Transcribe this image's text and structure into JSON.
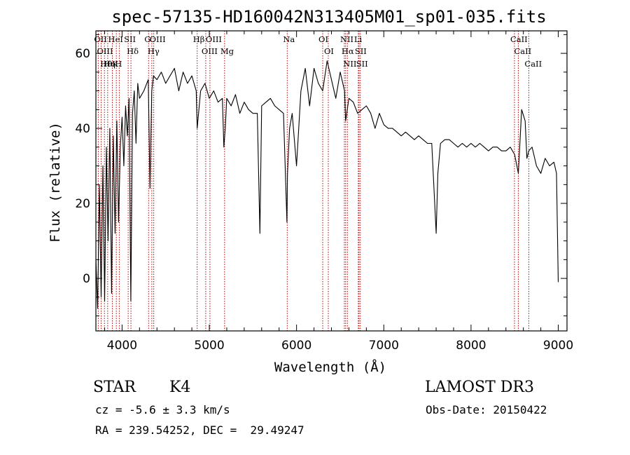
{
  "title": "spec-57135-HD160042N313405M01_sp01-035.fits",
  "info": {
    "object_class": "STAR",
    "subclass": "K4",
    "survey": "LAMOST DR3",
    "cz": "cz = -5.6 ± 3.3 km/s",
    "obs_date": "Obs-Date: 20150422",
    "coords": "RA = 239.54252, DEC =  29.49247"
  },
  "chart_data": {
    "type": "line",
    "title": "spec-57135-HD160042N313405M01_sp01-035.fits",
    "xlabel": "Wavelength (Å)",
    "ylabel": "Flux (relative)",
    "xlim": [
      3700,
      9100
    ],
    "ylim": [
      -14,
      66
    ],
    "x_ticks": [
      4000,
      5000,
      6000,
      7000,
      8000,
      9000
    ],
    "y_ticks": [
      0,
      20,
      40,
      60
    ],
    "grid": false,
    "line_color": "#000000",
    "marker_color": "#c00000",
    "series": [
      {
        "x": [
          3700,
          3720,
          3740,
          3760,
          3780,
          3800,
          3820,
          3840,
          3860,
          3880,
          3900,
          3920,
          3940,
          3960,
          3980,
          4000,
          4020,
          4040,
          4060,
          4080,
          4100,
          4120,
          4140,
          4160,
          4180,
          4200,
          4250,
          4300,
          4320,
          4340,
          4360,
          4400,
          4450,
          4500,
          4550,
          4600,
          4650,
          4700,
          4750,
          4800,
          4850,
          4861,
          4900,
          4950,
          5000,
          5050,
          5100,
          5150,
          5167,
          5183,
          5200,
          5250,
          5300,
          5350,
          5400,
          5450,
          5500,
          5550,
          5580,
          5600,
          5650,
          5700,
          5750,
          5800,
          5850,
          5890,
          5896,
          5920,
          5950,
          6000,
          6050,
          6100,
          6150,
          6200,
          6250,
          6300,
          6350,
          6400,
          6450,
          6500,
          6550,
          6563,
          6600,
          6650,
          6700,
          6750,
          6800,
          6850,
          6900,
          6950,
          7000,
          7050,
          7100,
          7150,
          7200,
          7250,
          7300,
          7350,
          7400,
          7450,
          7500,
          7550,
          7600,
          7620,
          7650,
          7700,
          7750,
          7800,
          7850,
          7900,
          7950,
          8000,
          8050,
          8100,
          8150,
          8200,
          8250,
          8300,
          8350,
          8400,
          8450,
          8500,
          8542,
          8580,
          8620,
          8640,
          8662,
          8700,
          8750,
          8800,
          8850,
          8900,
          8950,
          8980,
          9000
        ],
        "y": [
          5,
          -8,
          25,
          -5,
          30,
          -6,
          35,
          10,
          40,
          -4,
          38,
          12,
          42,
          15,
          35,
          43,
          30,
          46,
          38,
          48,
          -6,
          44,
          50,
          36,
          52,
          48,
          50,
          53,
          24,
          50,
          54,
          53,
          55,
          52,
          54,
          56,
          50,
          55,
          52,
          54,
          50,
          40,
          50,
          52,
          48,
          50,
          47,
          48,
          35,
          40,
          48,
          46,
          49,
          44,
          47,
          45,
          44,
          44,
          12,
          46,
          47,
          48,
          46,
          45,
          44,
          15,
          28,
          40,
          44,
          30,
          50,
          56,
          46,
          56,
          52,
          50,
          58,
          53,
          48,
          55,
          50,
          42,
          48,
          47,
          44,
          45,
          46,
          44,
          40,
          44,
          41,
          40,
          40,
          39,
          38,
          39,
          38,
          37,
          38,
          37,
          36,
          36,
          12,
          28,
          36,
          37,
          37,
          36,
          35,
          36,
          35,
          36,
          35,
          36,
          35,
          34,
          35,
          35,
          34,
          34,
          35,
          33,
          28,
          45,
          42,
          32,
          34,
          35,
          30,
          28,
          32,
          30,
          31,
          28,
          -1
        ]
      }
    ],
    "line_markers": [
      {
        "name": "Hθ",
        "wl": 3798
      },
      {
        "name": "OII",
        "wl": 3727
      },
      {
        "name": "OIII",
        "wl": 3760
      },
      {
        "name": "Hη",
        "wl": 3835
      },
      {
        "name": "K",
        "wl": 3934
      },
      {
        "name": "HeI",
        "wl": 3889
      },
      {
        "name": "H",
        "wl": 3968
      },
      {
        "name": "SII",
        "wl": 4070
      },
      {
        "name": "Hδ",
        "wl": 4102
      },
      {
        "name": "OIII",
        "wl": 4363
      },
      {
        "name": "Hγ",
        "wl": 4341
      },
      {
        "name": "G",
        "wl": 4304
      },
      {
        "name": "Hβ",
        "wl": 4861
      },
      {
        "name": "OIII",
        "wl": 4959
      },
      {
        "name": "OIII",
        "wl": 5007
      },
      {
        "name": "Mg",
        "wl": 5175
      },
      {
        "name": "Na",
        "wl": 5893
      },
      {
        "name": "OI",
        "wl": 6300
      },
      {
        "name": "OI",
        "wl": 6364
      },
      {
        "name": "Hα",
        "wl": 6563
      },
      {
        "name": "NII",
        "wl": 6548
      },
      {
        "name": "NII",
        "wl": 6583
      },
      {
        "name": "SII",
        "wl": 6716
      },
      {
        "name": "Li",
        "wl": 6708
      },
      {
        "name": "SII",
        "wl": 6731
      },
      {
        "name": "CaII",
        "wl": 8498
      },
      {
        "name": "CaII",
        "wl": 8542
      },
      {
        "name": "CaII",
        "wl": 8662
      }
    ]
  }
}
